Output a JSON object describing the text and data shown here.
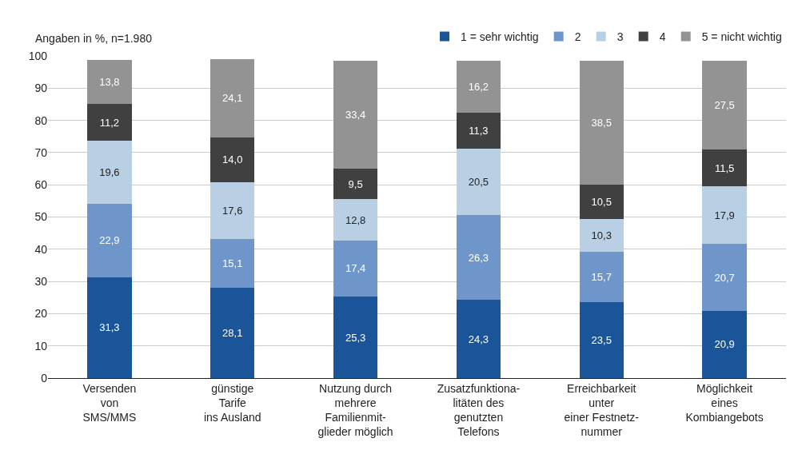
{
  "chart_data": {
    "type": "bar",
    "stacked": true,
    "legend": "top right",
    "grid": "y",
    "annotations": [
      "Angaben in %, n=1.980"
    ],
    "categories": [
      "Versenden\nvon\nSMS/MMS",
      "günstige\nTarife\nins Ausland",
      "Nutzung durch\nmehrere\nFamilienmit-\nglieder möglich",
      "Zusatzfunktiona-\nlitäten des\ngenutzten\nTelefons",
      "Erreichbarkeit\nunter\neiner Festnetz-\nnummer",
      "Möglichkeit\neines\nKombiangebots"
    ],
    "ylim": [
      0,
      100
    ],
    "yticks": [
      0,
      10,
      20,
      30,
      40,
      50,
      60,
      70,
      80,
      90,
      100
    ],
    "series": [
      {
        "name": "1 = sehr wichtig",
        "color": "#1a5599",
        "values": [
          31.3,
          28.1,
          25.3,
          24.3,
          23.5,
          20.9
        ],
        "value_labels": [
          "31,3",
          "28,1",
          "25,3",
          "24,3",
          "23,5",
          "20,9"
        ]
      },
      {
        "name": "2",
        "color": "#6f96cb",
        "values": [
          22.9,
          15.1,
          17.4,
          26.3,
          15.7,
          20.7
        ],
        "value_labels": [
          "22,9",
          "15,1",
          "17,4",
          "26,3",
          "15,7",
          "20,7"
        ]
      },
      {
        "name": "3",
        "color": "#b9cfe4",
        "values": [
          19.6,
          17.6,
          12.8,
          20.5,
          10.3,
          17.9
        ],
        "value_labels": [
          "19,6",
          "17,6",
          "12,8",
          "20,5",
          "10,3",
          "17,9"
        ]
      },
      {
        "name": "4",
        "color": "#404040",
        "values": [
          11.2,
          14.0,
          9.5,
          11.3,
          10.5,
          11.5
        ],
        "value_labels": [
          "11,2",
          "14,0",
          "9,5",
          "11,3",
          "10,5",
          "11,5"
        ]
      },
      {
        "name": "5 = nicht wichtig",
        "color": "#939393",
        "values": [
          13.8,
          24.1,
          33.4,
          16.2,
          38.5,
          27.5
        ],
        "value_labels": [
          "13,8",
          "24,1",
          "33,4",
          "16,2",
          "38,5",
          "27,5"
        ]
      }
    ]
  }
}
